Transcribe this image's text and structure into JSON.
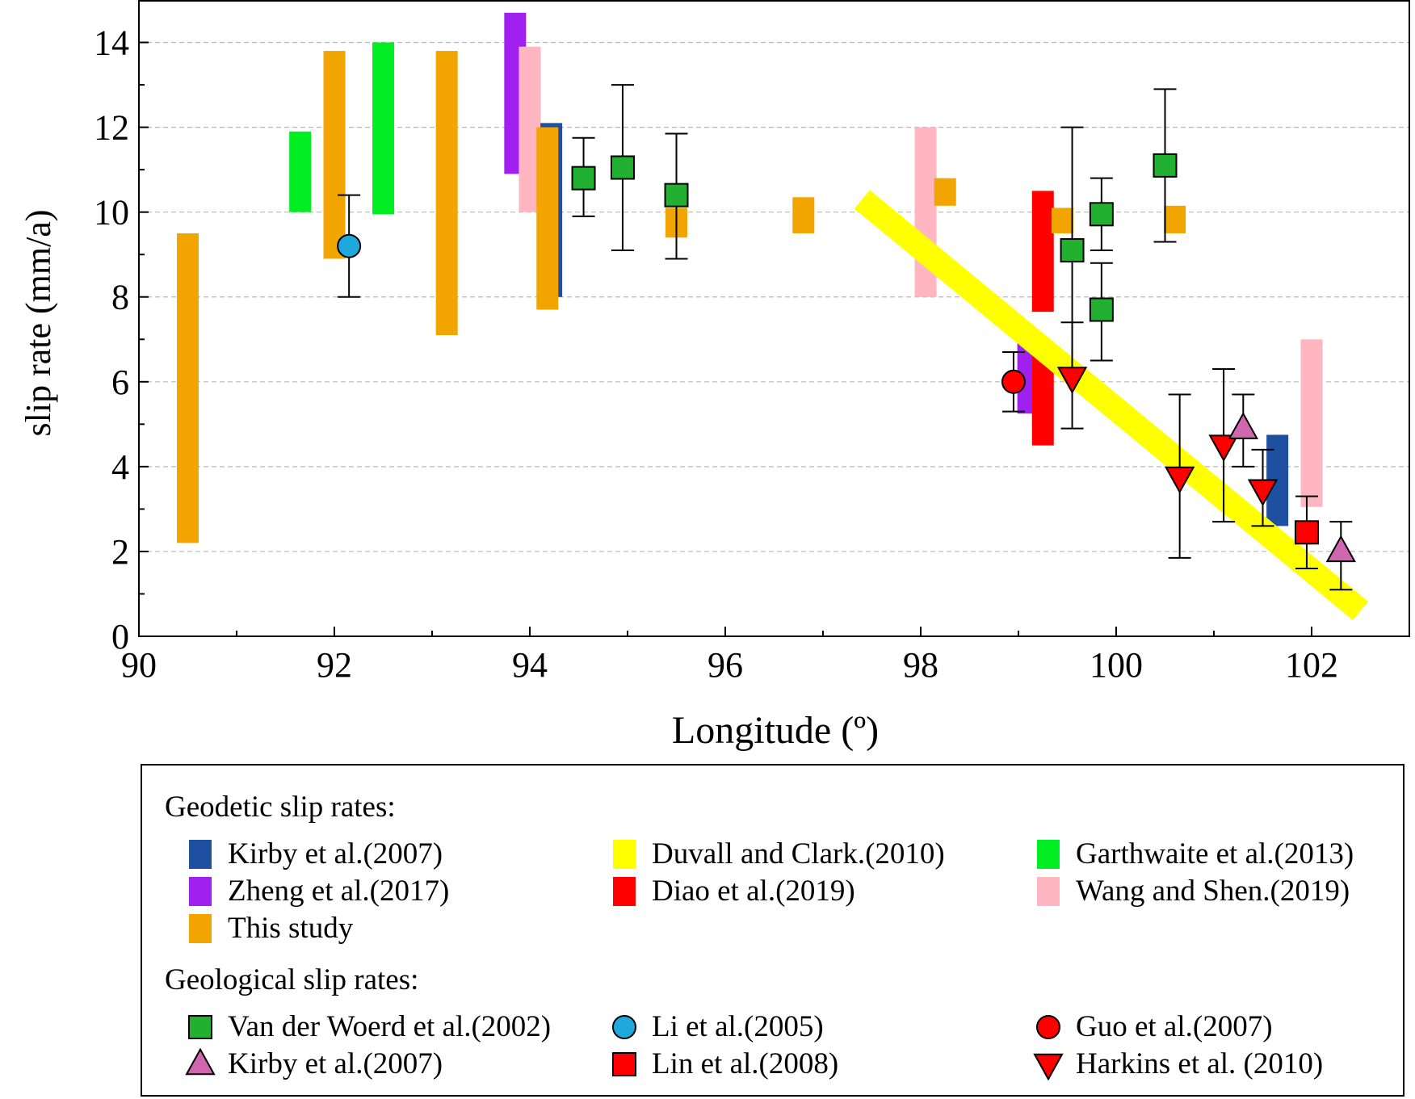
{
  "chart_data": {
    "type": "scatter",
    "xlabel": "Longitude (º)",
    "ylabel": "slip rate (mm/a)",
    "xlim": [
      90,
      103
    ],
    "ylim": [
      0,
      15
    ],
    "xticks": [
      90,
      92,
      94,
      96,
      98,
      100,
      102
    ],
    "yticks": [
      0,
      2,
      4,
      6,
      8,
      10,
      12,
      14
    ],
    "grid": "horizontal dashed",
    "legend_placement": "bottom",
    "colors": {
      "kirby_geodetic": "#1f4fa0",
      "duvall": "#ffff00",
      "garthwaite": "#00ee22",
      "zheng": "#a020f0",
      "diao": "#ff0000",
      "wang": "#ffb6c1",
      "this_study": "#f2a500",
      "vanderwoerd": "#22b030",
      "li": "#1fa8dc",
      "guo": "#ff0000",
      "kirby_geological": "#d066b0",
      "lin": "#ff0000",
      "harkins": "#ff0000"
    },
    "geodetic_ranges": [
      {
        "series": "this_study",
        "x": 90.5,
        "ymin": 2.2,
        "ymax": 9.5
      },
      {
        "series": "garthwaite",
        "x": 91.65,
        "ymin": 10.0,
        "ymax": 11.9
      },
      {
        "series": "this_study",
        "x": 92.0,
        "ymin": 8.9,
        "ymax": 13.8
      },
      {
        "series": "garthwaite",
        "x": 92.5,
        "ymin": 9.95,
        "ymax": 14.0
      },
      {
        "series": "this_study",
        "x": 93.15,
        "ymin": 7.1,
        "ymax": 13.8
      },
      {
        "series": "zheng",
        "x": 93.85,
        "ymin": 10.9,
        "ymax": 14.7
      },
      {
        "series": "wang",
        "x": 94.0,
        "ymin": 10.0,
        "ymax": 13.9
      },
      {
        "series": "kirby_geodetic",
        "x": 94.22,
        "ymin": 8.0,
        "ymax": 12.1
      },
      {
        "series": "this_study",
        "x": 94.18,
        "ymin": 7.7,
        "ymax": 12.0
      },
      {
        "series": "this_study",
        "x": 95.5,
        "ymin": 9.4,
        "ymax": 10.1
      },
      {
        "series": "this_study",
        "x": 96.8,
        "ymin": 9.5,
        "ymax": 10.35
      },
      {
        "series": "wang",
        "x": 98.05,
        "ymin": 8.0,
        "ymax": 12.0
      },
      {
        "series": "this_study",
        "x": 98.25,
        "ymin": 10.15,
        "ymax": 10.8
      },
      {
        "series": "zheng",
        "x": 99.1,
        "ymin": 5.25,
        "ymax": 7.05
      },
      {
        "series": "diao",
        "x": 99.25,
        "ymin": 7.65,
        "ymax": 10.5
      },
      {
        "series": "diao",
        "x": 99.25,
        "ymin": 4.5,
        "ymax": 6.6
      },
      {
        "series": "this_study",
        "x": 99.45,
        "ymin": 9.5,
        "ymax": 10.1
      },
      {
        "series": "this_study",
        "x": 100.6,
        "ymin": 9.5,
        "ymax": 10.15
      },
      {
        "series": "kirby_geodetic",
        "x": 101.65,
        "ymin": 2.6,
        "ymax": 4.75
      },
      {
        "series": "wang",
        "x": 102.0,
        "ymin": 3.05,
        "ymax": 7.0
      }
    ],
    "duvall_band": {
      "series": "duvall",
      "x": [
        97.4,
        102.5
      ],
      "y": [
        10.3,
        0.6
      ]
    },
    "points": [
      {
        "series": "li",
        "marker": "circle",
        "x": 92.15,
        "y": 9.2,
        "ymin": 8.0,
        "ymax": 10.4
      },
      {
        "series": "vanderwoerd",
        "marker": "square",
        "x": 94.55,
        "y": 10.8,
        "ymin": 9.9,
        "ymax": 11.75
      },
      {
        "series": "vanderwoerd",
        "marker": "square",
        "x": 94.95,
        "y": 11.05,
        "ymin": 9.1,
        "ymax": 13.0
      },
      {
        "series": "vanderwoerd",
        "marker": "square",
        "x": 95.5,
        "y": 10.4,
        "ymin": 8.9,
        "ymax": 11.85
      },
      {
        "series": "guo",
        "marker": "circle",
        "x": 98.95,
        "y": 6.0,
        "ymin": 5.3,
        "ymax": 6.7
      },
      {
        "series": "vanderwoerd",
        "marker": "square",
        "x": 99.55,
        "y": 9.1,
        "ymin": 6.2,
        "ymax": 12.0
      },
      {
        "series": "harkins",
        "marker": "triangle-down",
        "x": 99.55,
        "y": 6.1,
        "ymin": 4.9,
        "ymax": 7.4
      },
      {
        "series": "vanderwoerd",
        "marker": "square",
        "x": 99.85,
        "y": 9.95,
        "ymin": 9.1,
        "ymax": 10.8
      },
      {
        "series": "vanderwoerd",
        "marker": "square",
        "x": 99.85,
        "y": 7.7,
        "ymin": 6.5,
        "ymax": 8.8
      },
      {
        "series": "vanderwoerd",
        "marker": "square",
        "x": 100.5,
        "y": 11.1,
        "ymin": 9.3,
        "ymax": 12.9
      },
      {
        "series": "harkins",
        "marker": "triangle-down",
        "x": 100.65,
        "y": 3.75,
        "ymin": 1.85,
        "ymax": 5.7
      },
      {
        "series": "harkins",
        "marker": "triangle-down",
        "x": 101.1,
        "y": 4.5,
        "ymin": 2.7,
        "ymax": 6.3
      },
      {
        "series": "kirby_geological",
        "marker": "triangle-up",
        "x": 101.3,
        "y": 4.9,
        "ymin": 4.0,
        "ymax": 5.7
      },
      {
        "series": "harkins",
        "marker": "triangle-down",
        "x": 101.5,
        "y": 3.45,
        "ymin": 2.6,
        "ymax": 4.4
      },
      {
        "series": "lin",
        "marker": "square",
        "x": 101.95,
        "y": 2.45,
        "ymin": 1.6,
        "ymax": 3.3
      },
      {
        "series": "kirby_geological",
        "marker": "triangle-up",
        "x": 102.3,
        "y": 2.0,
        "ymin": 1.1,
        "ymax": 2.7
      }
    ]
  },
  "legend": {
    "geodetic_title": "Geodetic slip rates:",
    "geological_title": "Geological slip rates:",
    "geodetic_items": [
      {
        "key": "kirby_geodetic",
        "label": "Kirby et al.(2007)"
      },
      {
        "key": "duvall",
        "label": "Duvall and Clark.(2010)"
      },
      {
        "key": "garthwaite",
        "label": "Garthwaite et al.(2013)"
      },
      {
        "key": "zheng",
        "label": "Zheng et al.(2017)"
      },
      {
        "key": "diao",
        "label": "Diao et al.(2019)"
      },
      {
        "key": "wang",
        "label": "Wang and Shen.(2019)"
      },
      {
        "key": "this_study",
        "label": "This study"
      }
    ],
    "geological_items": [
      {
        "key": "vanderwoerd",
        "marker": "square",
        "label": "Van der Woerd et al.(2002)"
      },
      {
        "key": "li",
        "marker": "circle",
        "label": "Li et al.(2005)"
      },
      {
        "key": "guo",
        "marker": "circle",
        "label": "Guo et al.(2007)"
      },
      {
        "key": "kirby_geological",
        "marker": "triangle-up",
        "label": "Kirby et al.(2007)"
      },
      {
        "key": "lin",
        "marker": "square",
        "label": "Lin et al.(2008)"
      },
      {
        "key": "harkins",
        "marker": "triangle-down",
        "label": "Harkins et al. (2010)"
      }
    ]
  }
}
